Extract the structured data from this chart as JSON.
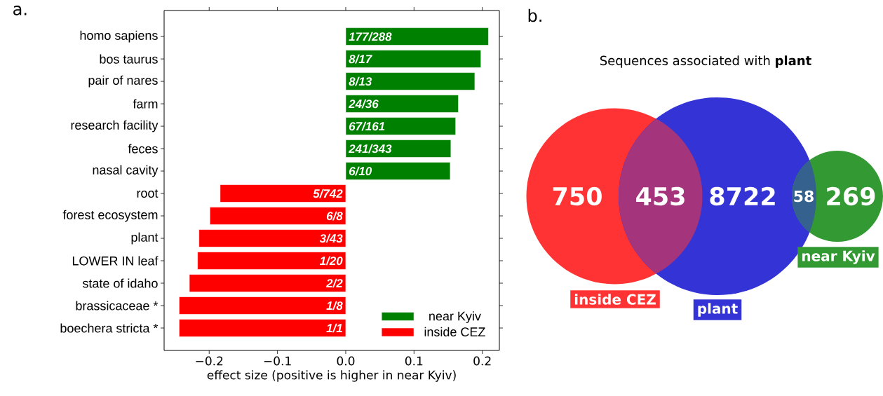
{
  "chart_data": [
    {
      "type": "bar",
      "orientation": "horizontal",
      "xlabel": "effect size (positive is higher in near Kyiv)",
      "categories": [
        "homo sapiens",
        "bos taurus",
        "pair of nares",
        "farm",
        "research facility",
        "feces",
        "nasal cavity",
        "root",
        "forest ecosystem",
        "plant",
        "LOWER IN leaf",
        "state of idaho",
        "brassicaceae *",
        "boechera stricta *"
      ],
      "series": [
        {
          "name": "near Kyiv",
          "color": "#008000",
          "values": [
            0.209,
            0.198,
            0.189,
            0.165,
            0.161,
            0.154,
            0.153,
            null,
            null,
            null,
            null,
            null,
            null,
            null
          ]
        },
        {
          "name": "inside CEZ",
          "color": "#ff0000",
          "values": [
            null,
            null,
            null,
            null,
            null,
            null,
            null,
            -0.184,
            -0.199,
            -0.215,
            -0.217,
            -0.229,
            -0.244,
            -0.244
          ]
        }
      ],
      "xlim": [
        -0.266,
        0.225
      ],
      "xticks": [
        {
          "value": -0.2,
          "label": "−0.2"
        },
        {
          "value": -0.1,
          "label": "−0.1"
        },
        {
          "value": 0.0,
          "label": "0.0"
        },
        {
          "value": 0.1,
          "label": "0.1"
        },
        {
          "value": 0.2,
          "label": "0.2"
        }
      ],
      "legend": "bottom right",
      "annotations": [
        "a.",
        {
          "text": "177/288",
          "y": "homo sapiens"
        },
        {
          "text": "8/17",
          "y": "bos taurus"
        },
        {
          "text": "8/13",
          "y": "pair of nares"
        },
        {
          "text": "24/36",
          "y": "farm"
        },
        {
          "text": "67/161",
          "y": "research facility"
        },
        {
          "text": "241/343",
          "y": "feces"
        },
        {
          "text": "6/10",
          "y": "nasal cavity"
        },
        {
          "text": "5/742",
          "y": "root"
        },
        {
          "text": "6/8",
          "y": "forest ecosystem"
        },
        {
          "text": "3/43",
          "y": "plant"
        },
        {
          "text": "1/20",
          "y": "LOWER IN leaf"
        },
        {
          "text": "2/2",
          "y": "state of idaho"
        },
        {
          "text": "1/8",
          "y": "brassicaceae *"
        },
        {
          "text": "1/1",
          "y": "boechera stricta *"
        }
      ]
    },
    {
      "type": "other",
      "title": "Sequences associated with **plant**",
      "categories": [
        "inside CEZ",
        "plant",
        "near Kyiv"
      ],
      "colors": [
        "#ff3333",
        "#3434d6",
        "#339933"
      ],
      "annotations": [
        "b.",
        "750",
        "453",
        "8722",
        "58",
        "269"
      ]
    }
  ]
}
